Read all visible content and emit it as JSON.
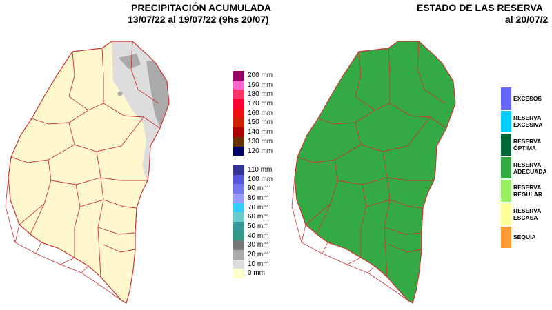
{
  "left_panel": {
    "title_line1": "PRECIPITACIÓN ACUMULADA",
    "title_line2": "13/07/22 al 19/07/22 (9hs 20/07)",
    "legend": [
      {
        "label": "200 mm",
        "color": "#990066"
      },
      {
        "label": "190 mm",
        "color": "#ff66cc"
      },
      {
        "label": "180 mm",
        "color": "#ff3366"
      },
      {
        "label": "170 mm",
        "color": "#ff0033"
      },
      {
        "label": "160 mm",
        "color": "#ee1111"
      },
      {
        "label": "150 mm",
        "color": "#cc2200"
      },
      {
        "label": "140 mm",
        "color": "#aa0000"
      },
      {
        "label": "130 mm",
        "color": "#663300"
      },
      {
        "label": "120 mm",
        "color": "#000066"
      },
      {
        "label": "",
        "color": "#ffffff"
      },
      {
        "label": "110 mm",
        "color": "#333399"
      },
      {
        "label": "100 mm",
        "color": "#5555dd"
      },
      {
        "label": "90 mm",
        "color": "#7777ee"
      },
      {
        "label": "80 mm",
        "color": "#9999ff"
      },
      {
        "label": "70 mm",
        "color": "#33ccff"
      },
      {
        "label": "60 mm",
        "color": "#66cccc"
      },
      {
        "label": "50 mm",
        "color": "#339999"
      },
      {
        "label": "40 mm",
        "color": "#339988"
      },
      {
        "label": "30 mm",
        "color": "#777777"
      },
      {
        "label": "20 mm",
        "color": "#aaaaaa"
      },
      {
        "label": "10 mm",
        "color": "#dddddd"
      },
      {
        "label": "0 mm",
        "color": "#ffffcc"
      }
    ]
  },
  "right_panel": {
    "title_line1": "ESTADO DE LAS RESERVA",
    "title_line2": "al 20/07/2",
    "legend": [
      {
        "label": "EXCESOS",
        "color": "#6666ff"
      },
      {
        "label": "RESERVA EXCESIVA",
        "color": "#00ccff"
      },
      {
        "label": "RESERVA ÓPTIMA",
        "color": "#006633"
      },
      {
        "label": "RESERVA ADECUADA",
        "color": "#33aa44"
      },
      {
        "label": "RESERVA REGULAR",
        "color": "#99ee66"
      },
      {
        "label": "RESERVA ESCASA",
        "color": "#ffff99"
      },
      {
        "label": "SEQUÍA",
        "color": "#ff9933"
      }
    ]
  },
  "colors": {
    "border": "#cc3333",
    "no_rain": "#fff8cc",
    "light_rain": "#dddddd",
    "moderate_rain": "#aaaaaa"
  }
}
